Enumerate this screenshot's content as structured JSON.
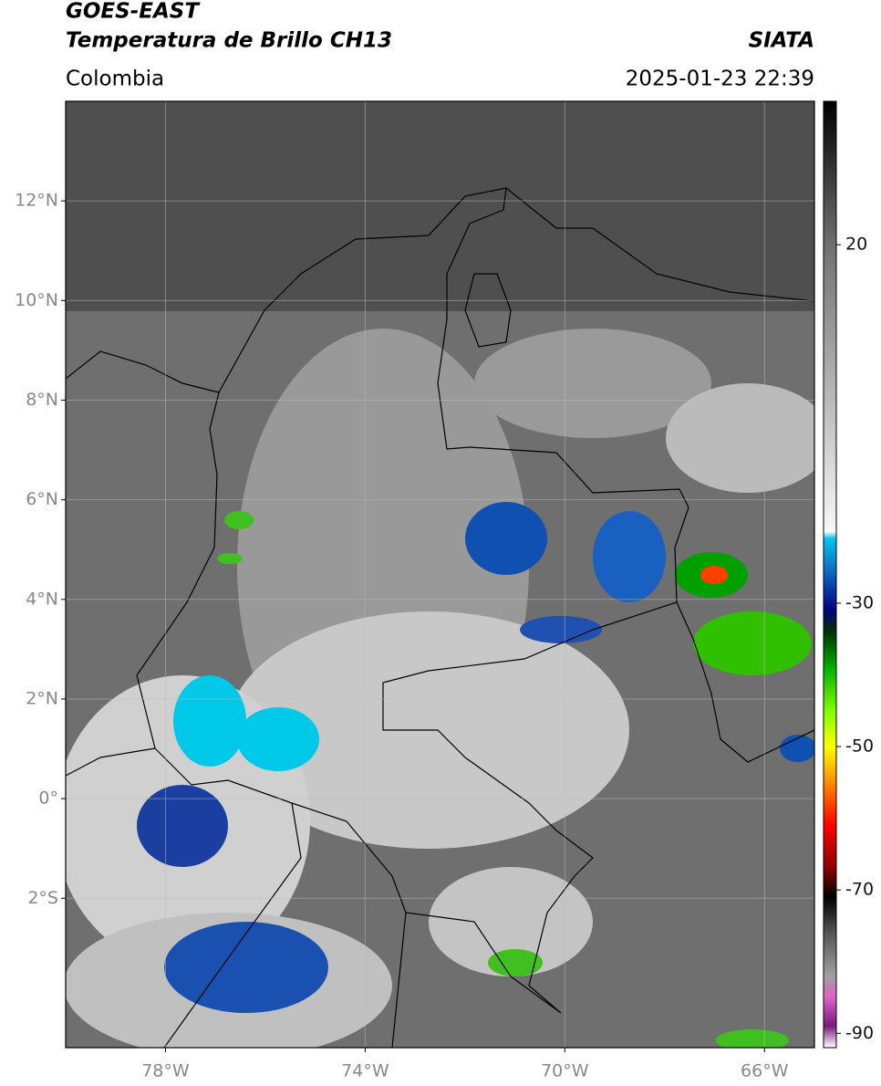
{
  "header": {
    "title": "GOES-EAST",
    "subtitle": "Temperatura de Brillo CH13",
    "source": "SIATA",
    "region": "Colombia",
    "timestamp": "2025-01-23 22:39"
  },
  "map": {
    "lon_range": [
      -80,
      -65
    ],
    "lat_range": [
      -5,
      14
    ],
    "grid": true,
    "lon_ticks": [
      {
        "value": -78,
        "label": "78°W"
      },
      {
        "value": -74,
        "label": "74°W"
      },
      {
        "value": -70,
        "label": "70°W"
      },
      {
        "value": -66,
        "label": "66°W"
      }
    ],
    "lat_ticks": [
      {
        "value": 12,
        "label": "12°N"
      },
      {
        "value": 10,
        "label": "10°N"
      },
      {
        "value": 8,
        "label": "8°N"
      },
      {
        "value": 6,
        "label": "6°N"
      },
      {
        "value": 4,
        "label": "4°N"
      },
      {
        "value": 2,
        "label": "2°N"
      },
      {
        "value": 0,
        "label": "0°"
      },
      {
        "value": -2,
        "label": "2°S"
      }
    ]
  },
  "colorbar": {
    "range": [
      -92,
      40
    ],
    "ticks": [
      20,
      -30,
      -50,
      -70,
      -90
    ],
    "colors": [
      {
        "value": -92,
        "color": "#ffffff"
      },
      {
        "value": -89,
        "color": "#7a1a7a"
      },
      {
        "value": -85,
        "color": "#e060c8"
      },
      {
        "value": -82,
        "color": "#a0a0a0"
      },
      {
        "value": -76,
        "color": "#555555"
      },
      {
        "value": -71,
        "color": "#000000"
      },
      {
        "value": -67,
        "color": "#8b0000"
      },
      {
        "value": -61,
        "color": "#ff0000"
      },
      {
        "value": -55,
        "color": "#ff8c00"
      },
      {
        "value": -50,
        "color": "#ffff00"
      },
      {
        "value": -45,
        "color": "#7fff00"
      },
      {
        "value": -39,
        "color": "#00b000"
      },
      {
        "value": -34,
        "color": "#003300"
      },
      {
        "value": -31,
        "color": "#000080"
      },
      {
        "value": -26,
        "color": "#1060c0"
      },
      {
        "value": -21,
        "color": "#00c8e8"
      },
      {
        "value": -20,
        "color": "#f8f8f8"
      },
      {
        "value": 20,
        "color": "#707070"
      },
      {
        "value": 40,
        "color": "#000000"
      }
    ]
  }
}
